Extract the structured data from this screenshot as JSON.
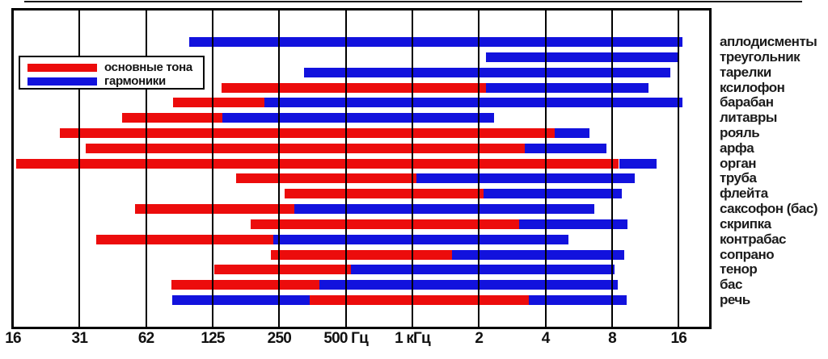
{
  "colors": {
    "fundamental": "#ec0c0c",
    "harmonics": "#1212dd",
    "grid": "#000000",
    "background": "#ffffff",
    "text": "#1c1c1c"
  },
  "legend": {
    "items": [
      {
        "key": "fundamental",
        "label": "основные тона",
        "color": "#ec0c0c"
      },
      {
        "key": "harmonics",
        "label": "гармоники",
        "color": "#1212dd"
      }
    ]
  },
  "chart_data": {
    "type": "bar",
    "orientation": "horizontal-range",
    "x_scale": "log2",
    "x_unit": "Hz",
    "x_domain_hz": [
      16,
      22500
    ],
    "grid": true,
    "legend_position": "top-left-inside",
    "x_ticks": [
      {
        "hz": 16,
        "label": "16"
      },
      {
        "hz": 32,
        "label": "31"
      },
      {
        "hz": 64,
        "label": "62"
      },
      {
        "hz": 128,
        "label": "125"
      },
      {
        "hz": 256,
        "label": "250"
      },
      {
        "hz": 512,
        "label": "500 Гц"
      },
      {
        "hz": 1024,
        "label": "1 кГц"
      },
      {
        "hz": 2048,
        "label": "2"
      },
      {
        "hz": 4096,
        "label": "4"
      },
      {
        "hz": 8192,
        "label": "8"
      },
      {
        "hz": 16384,
        "label": "16"
      }
    ],
    "rows": [
      {
        "label": "аплодисменты",
        "segments": [
          {
            "type": "harmonics",
            "from_hz": 100,
            "to_hz": 17000
          }
        ]
      },
      {
        "label": "треугольник",
        "segments": [
          {
            "type": "harmonics",
            "from_hz": 2200,
            "to_hz": 16500
          }
        ]
      },
      {
        "label": "тарелки",
        "segments": [
          {
            "type": "harmonics",
            "from_hz": 330,
            "to_hz": 15000
          }
        ]
      },
      {
        "label": "ксилофон",
        "segments": [
          {
            "type": "fundamental",
            "from_hz": 140,
            "to_hz": 2200
          },
          {
            "type": "harmonics",
            "from_hz": 2200,
            "to_hz": 12000
          }
        ]
      },
      {
        "label": "барабан",
        "segments": [
          {
            "type": "fundamental",
            "from_hz": 85,
            "to_hz": 220
          },
          {
            "type": "harmonics",
            "from_hz": 220,
            "to_hz": 17000
          }
        ]
      },
      {
        "label": "литавры",
        "segments": [
          {
            "type": "fundamental",
            "from_hz": 50,
            "to_hz": 142
          },
          {
            "type": "harmonics",
            "from_hz": 142,
            "to_hz": 2400
          }
        ]
      },
      {
        "label": "рояль",
        "segments": [
          {
            "type": "fundamental",
            "from_hz": 26,
            "to_hz": 4500
          },
          {
            "type": "harmonics",
            "from_hz": 4500,
            "to_hz": 6500
          }
        ]
      },
      {
        "label": "арфа",
        "segments": [
          {
            "type": "fundamental",
            "from_hz": 34,
            "to_hz": 3300
          },
          {
            "type": "harmonics",
            "from_hz": 3300,
            "to_hz": 7700
          }
        ]
      },
      {
        "label": "орган",
        "segments": [
          {
            "type": "fundamental",
            "from_hz": 16.5,
            "to_hz": 8800
          },
          {
            "type": "harmonics",
            "from_hz": 8800,
            "to_hz": 13000
          }
        ]
      },
      {
        "label": "труба",
        "segments": [
          {
            "type": "fundamental",
            "from_hz": 163,
            "to_hz": 1070
          },
          {
            "type": "harmonics",
            "from_hz": 1070,
            "to_hz": 10400
          }
        ]
      },
      {
        "label": "флейта",
        "segments": [
          {
            "type": "fundamental",
            "from_hz": 270,
            "to_hz": 2150
          },
          {
            "type": "harmonics",
            "from_hz": 2150,
            "to_hz": 9100
          }
        ]
      },
      {
        "label": "саксофон (бас)",
        "segments": [
          {
            "type": "fundamental",
            "from_hz": 57,
            "to_hz": 300
          },
          {
            "type": "harmonics",
            "from_hz": 300,
            "to_hz": 6800
          }
        ]
      },
      {
        "label": "скрипка",
        "segments": [
          {
            "type": "fundamental",
            "from_hz": 190,
            "to_hz": 3100
          },
          {
            "type": "harmonics",
            "from_hz": 3100,
            "to_hz": 9600
          }
        ]
      },
      {
        "label": "контрабас",
        "segments": [
          {
            "type": "fundamental",
            "from_hz": 38,
            "to_hz": 240
          },
          {
            "type": "harmonics",
            "from_hz": 240,
            "to_hz": 5200
          }
        ]
      },
      {
        "label": "сопрано",
        "segments": [
          {
            "type": "fundamental",
            "from_hz": 235,
            "to_hz": 1550
          },
          {
            "type": "harmonics",
            "from_hz": 1550,
            "to_hz": 9300
          }
        ]
      },
      {
        "label": "тенор",
        "segments": [
          {
            "type": "fundamental",
            "from_hz": 130,
            "to_hz": 540
          },
          {
            "type": "harmonics",
            "from_hz": 540,
            "to_hz": 8400
          }
        ]
      },
      {
        "label": "бас",
        "segments": [
          {
            "type": "fundamental",
            "from_hz": 83,
            "to_hz": 390
          },
          {
            "type": "harmonics",
            "from_hz": 390,
            "to_hz": 8700
          }
        ]
      },
      {
        "label": "речь",
        "segments": [
          {
            "type": "harmonics",
            "from_hz": 84,
            "to_hz": 350
          },
          {
            "type": "fundamental",
            "from_hz": 350,
            "to_hz": 3450
          },
          {
            "type": "harmonics",
            "from_hz": 3450,
            "to_hz": 9500
          }
        ]
      }
    ]
  }
}
